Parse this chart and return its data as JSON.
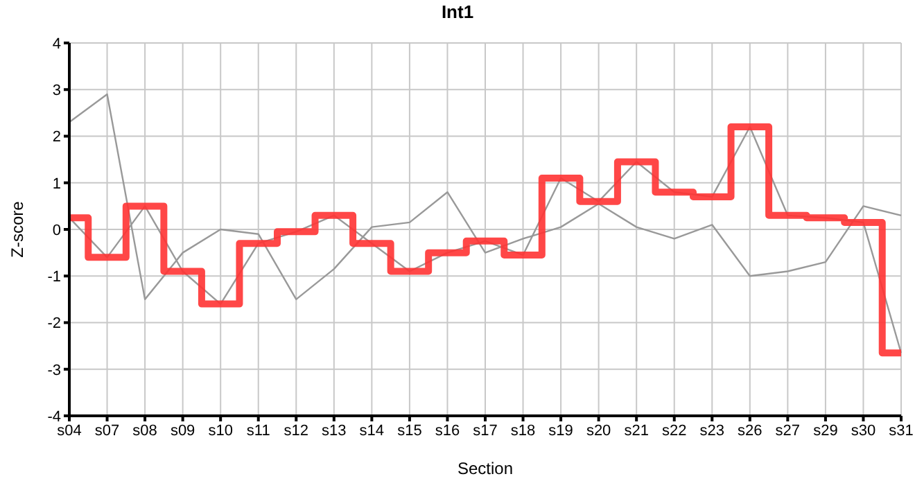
{
  "chart_data": {
    "type": "line",
    "title": "Int1",
    "xlabel": "Section",
    "ylabel": "Z-score",
    "categories": [
      "s04",
      "s07",
      "s08",
      "s09",
      "s10",
      "s11",
      "s12",
      "s13",
      "s14",
      "s15",
      "s16",
      "s17",
      "s18",
      "s19",
      "s20",
      "s21",
      "s22",
      "s23",
      "s26",
      "s27",
      "s29",
      "s30",
      "s31"
    ],
    "series": [
      {
        "color": "#999999",
        "values": [
          2.3,
          2.9,
          -1.5,
          -0.5,
          0,
          -0.1,
          -1.5,
          -0.85,
          0.05,
          0.15,
          0.8,
          -0.5,
          -0.2,
          0.05,
          0.55,
          0.05,
          -0.2,
          0.1,
          -1.0,
          -0.9,
          -0.7,
          0.5,
          0.3
        ]
      },
      {
        "color": "#999999",
        "values": [
          0.25,
          -0.6,
          0.5,
          -0.9,
          -1.6,
          -0.3,
          -0.05,
          0.3,
          -0.3,
          -0.9,
          -0.5,
          -0.25,
          -0.55,
          1.1,
          0.6,
          1.45,
          0.8,
          0.7,
          2.2,
          0.3,
          0.25,
          0.15,
          -2.65
        ]
      },
      {
        "type": "step",
        "color": "#ff3333",
        "values": [
          0.25,
          -0.6,
          0.5,
          -0.9,
          -1.6,
          -0.3,
          -0.05,
          0.3,
          -0.3,
          -0.9,
          -0.5,
          -0.25,
          -0.55,
          1.1,
          0.6,
          1.45,
          0.8,
          0.7,
          2.2,
          0.3,
          0.25,
          0.15,
          -2.65
        ]
      }
    ],
    "ylim": [
      -4,
      4
    ],
    "yticks": [
      -4,
      -3,
      -2,
      -1,
      0,
      1,
      2,
      3,
      4
    ],
    "grid": true,
    "marker": "none",
    "line_style": "solid"
  }
}
